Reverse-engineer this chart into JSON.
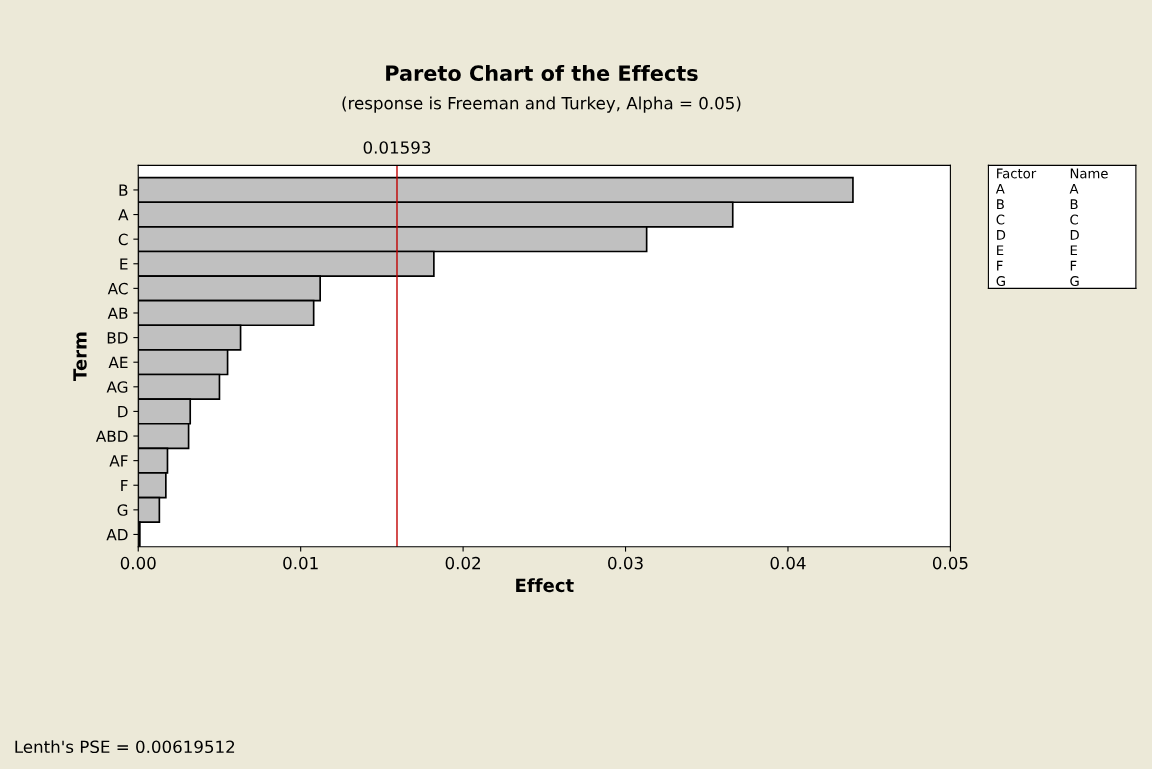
{
  "chart_data": {
    "type": "bar",
    "orientation": "horizontal",
    "title": "Pareto Chart of the Effects",
    "subtitle": "(response is Freeman and Turkey, Alpha = 0.05)",
    "xlabel": "Effect",
    "ylabel": "Term",
    "categories": [
      "B",
      "A",
      "C",
      "E",
      "AC",
      "AB",
      "BD",
      "AE",
      "AG",
      "D",
      "ABD",
      "AF",
      "F",
      "G",
      "AD"
    ],
    "values": [
      0.044,
      0.0366,
      0.0313,
      0.0182,
      0.0112,
      0.0108,
      0.0063,
      0.0055,
      0.005,
      0.0032,
      0.0031,
      0.0018,
      0.0017,
      0.0013,
      0.0001
    ],
    "color": "#c0c0c0",
    "xlim": [
      0,
      0.05
    ],
    "xticks": [
      {
        "value": 0,
        "label": "0.00"
      },
      0.01,
      0.02,
      0.03,
      0.04,
      0.05
    ],
    "ref_lines": [
      {
        "axis": "x",
        "value": 0.01593,
        "label": "0.01593",
        "color": "#c00000"
      }
    ],
    "annotations": [
      "Lenth's PSE = 0.00619512",
      "Factor\tName\nA\tA\nB\tB\nC\tC\nD\tD\nE\tE\nF\tF\nG\tG"
    ],
    "grid": false
  }
}
